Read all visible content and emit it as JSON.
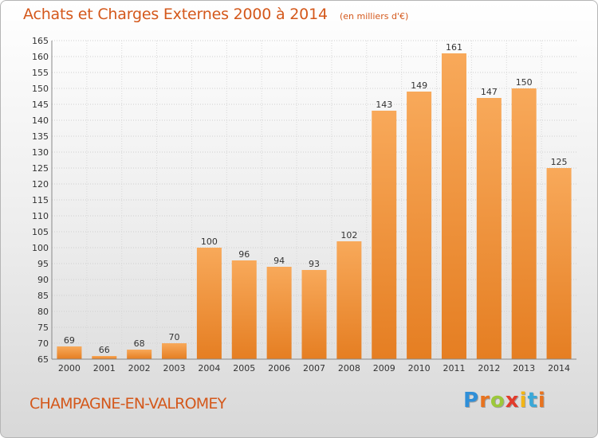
{
  "header": {
    "title": "Achats et Charges Externes 2000 à 2014",
    "subtitle": "(en milliers d'€)"
  },
  "footer": {
    "commune": "CHAMPAGNE-EN-VALROMEY",
    "logo_letters": [
      "P",
      "r",
      "o",
      "x",
      "i",
      "t",
      "i"
    ]
  },
  "colors": {
    "title": "#d4581b",
    "bar_light": "#f8a95a",
    "bar_dark": "#e57e22",
    "logo": [
      "#2f8fd8",
      "#e8731f",
      "#9cc83a",
      "#e23b2b",
      "#f2b516",
      "#3aa8d8",
      "#e8731f"
    ]
  },
  "chart_data": {
    "type": "bar",
    "title": "Achats et Charges Externes 2000 à 2014",
    "subtitle": "(en milliers d'€)",
    "categories": [
      "2000",
      "2001",
      "2002",
      "2003",
      "2004",
      "2005",
      "2006",
      "2007",
      "2008",
      "2009",
      "2010",
      "2011",
      "2012",
      "2013",
      "2014"
    ],
    "values": [
      69,
      66,
      68,
      70,
      100,
      96,
      94,
      93,
      102,
      143,
      149,
      161,
      147,
      150,
      125
    ],
    "ylim": [
      65,
      165
    ],
    "yticks": [
      65,
      70,
      75,
      80,
      85,
      90,
      95,
      100,
      105,
      110,
      115,
      120,
      125,
      130,
      135,
      140,
      145,
      150,
      155,
      160,
      165
    ],
    "grid": true,
    "legend": "none",
    "data_labels": true
  }
}
